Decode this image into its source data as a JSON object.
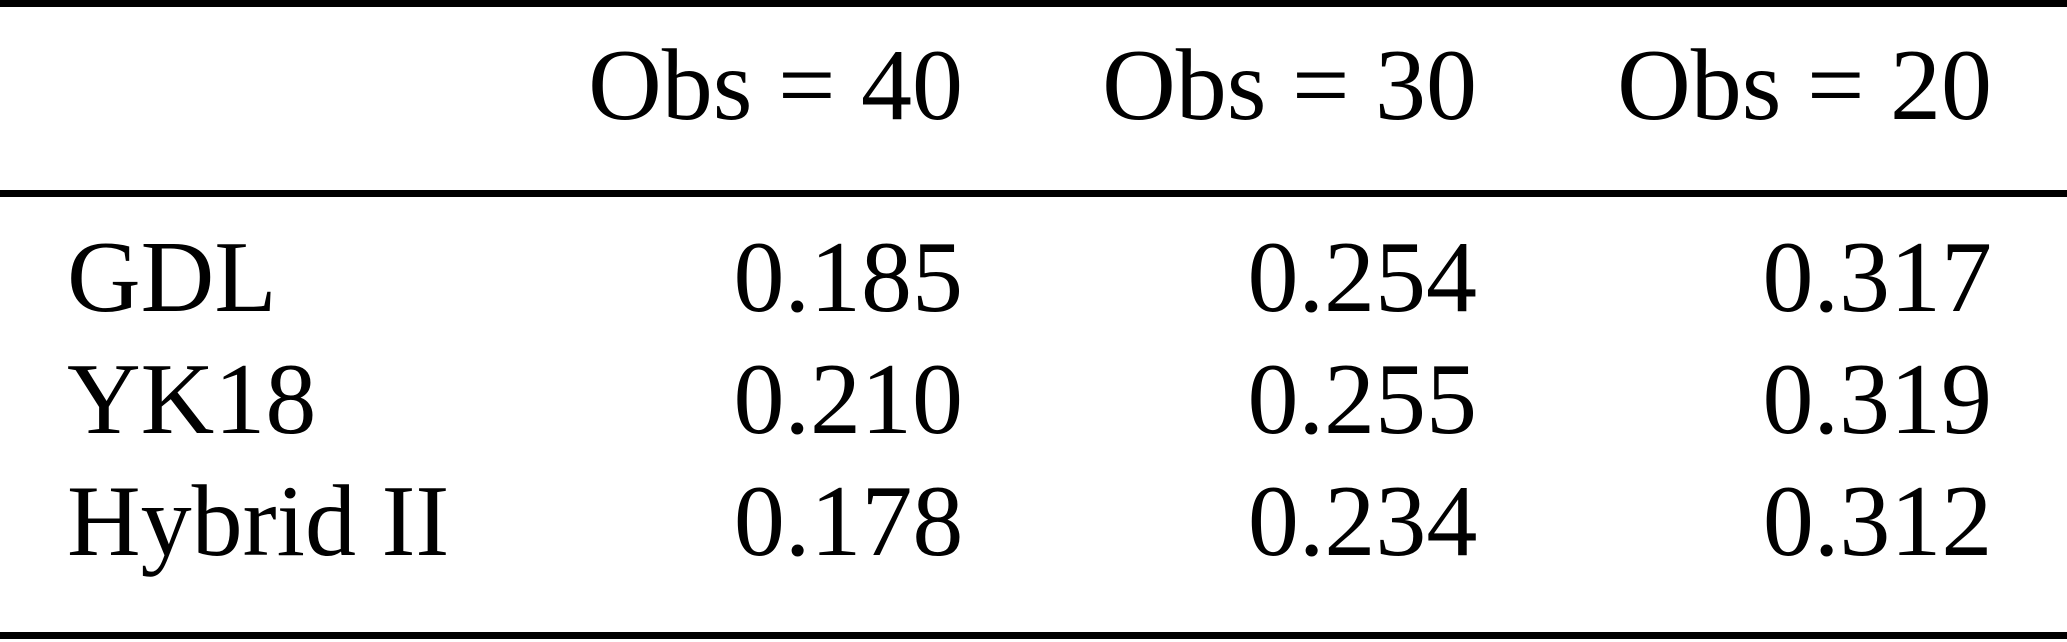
{
  "page": {
    "background": "#ffffff",
    "text_color": "#000000",
    "rule_color": "#000000"
  },
  "table": {
    "columns": [
      "",
      "Obs = 40",
      "Obs = 30",
      "Obs = 20"
    ],
    "rows": [
      {
        "label": "GDL",
        "values": [
          "0.185",
          "0.254",
          "0.317"
        ]
      },
      {
        "label": "YK18",
        "values": [
          "0.210",
          "0.255",
          "0.319"
        ]
      },
      {
        "label": "Hybrid II",
        "values": [
          "0.178",
          "0.234",
          "0.312"
        ]
      }
    ]
  },
  "chart_data": {
    "type": "table",
    "columns": [
      "",
      "Obs = 40",
      "Obs = 30",
      "Obs = 20"
    ],
    "rows": [
      [
        "GDL",
        0.185,
        0.254,
        0.317
      ],
      [
        "YK18",
        0.21,
        0.255,
        0.319
      ],
      [
        "Hybrid II",
        0.178,
        0.234,
        0.312
      ]
    ]
  }
}
